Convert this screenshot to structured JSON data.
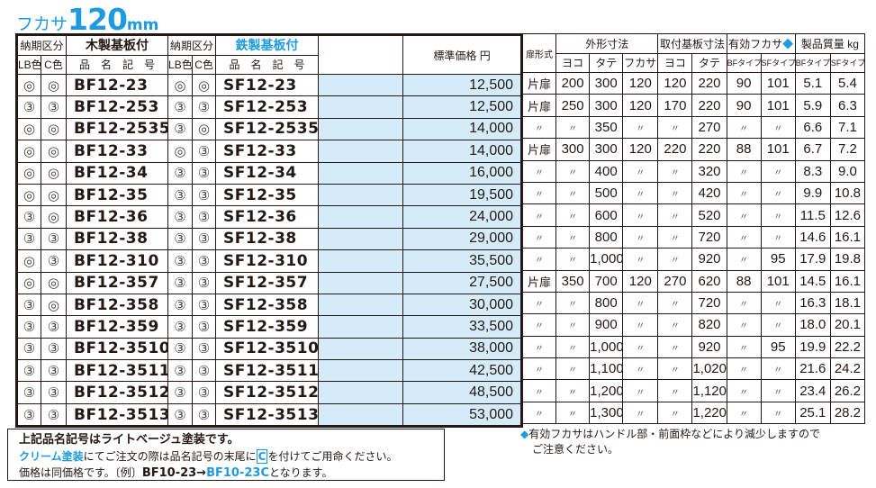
{
  "title": {
    "prefix": "フカサ",
    "value": "120",
    "unit": "mm"
  },
  "left_header": {
    "lead_time": "納期区分",
    "wood": "木製基板付",
    "steel": "鉄製基板付",
    "lb": "LB色",
    "c": "C色",
    "code": "品　名　記　号",
    "price": "標準価格 円"
  },
  "right_header": {
    "door": "扉形式",
    "outer": "外形寸法",
    "mount": "取付基板寸法",
    "depth": "有効フカサ",
    "diamond": "◆",
    "weight": "製品質量 kg",
    "yoko": "ヨコ",
    "tate": "タテ",
    "fukasa": "フカサ",
    "bf": "BFタイプ",
    "sf": "SFタイプ"
  },
  "colors": {
    "accent": "#1e9be0",
    "price_bg": "#d5ebf8"
  },
  "rows": [
    [
      "◎",
      "◎",
      "BF12-23",
      "◎",
      "◎",
      "SF12-23",
      "12,500",
      "片扉",
      "200",
      "300",
      "120",
      "120",
      "220",
      "90",
      "101",
      "5.1",
      "5.4"
    ],
    [
      "③",
      "③",
      "BF12-253",
      "③",
      "③",
      "SF12-253",
      "12,500",
      "片扉",
      "250",
      "300",
      "120",
      "170",
      "220",
      "90",
      "101",
      "5.9",
      "6.3"
    ],
    [
      "◎",
      "◎",
      "BF12-2535",
      "③",
      "◎",
      "SF12-2535",
      "14,000",
      "〃",
      "〃",
      "350",
      "〃",
      "〃",
      "270",
      "〃",
      "〃",
      "6.6",
      "7.1"
    ],
    [
      "◎",
      "◎",
      "BF12-33",
      "◎",
      "③",
      "SF12-33",
      "14,000",
      "片扉",
      "300",
      "300",
      "120",
      "220",
      "220",
      "88",
      "101",
      "6.7",
      "7.2"
    ],
    [
      "◎",
      "◎",
      "BF12-34",
      "③",
      "③",
      "SF12-34",
      "16,000",
      "〃",
      "〃",
      "400",
      "〃",
      "〃",
      "320",
      "〃",
      "〃",
      "8.3",
      "9.0"
    ],
    [
      "◎",
      "◎",
      "BF12-35",
      "③",
      "③",
      "SF12-35",
      "19,500",
      "〃",
      "〃",
      "500",
      "〃",
      "〃",
      "420",
      "〃",
      "〃",
      "9.9",
      "10.8"
    ],
    [
      "③",
      "◎",
      "BF12-36",
      "③",
      "③",
      "SF12-36",
      "24,000",
      "〃",
      "〃",
      "600",
      "〃",
      "〃",
      "520",
      "〃",
      "〃",
      "11.5",
      "12.6"
    ],
    [
      "③",
      "③",
      "BF12-38",
      "③",
      "③",
      "SF12-38",
      "29,000",
      "〃",
      "〃",
      "800",
      "〃",
      "〃",
      "720",
      "〃",
      "〃",
      "14.6",
      "16.1"
    ],
    [
      "◎",
      "③",
      "BF12-310",
      "③",
      "③",
      "SF12-310",
      "35,500",
      "〃",
      "〃",
      "1,000",
      "〃",
      "〃",
      "920",
      "〃",
      "95",
      "17.9",
      "19.8"
    ],
    [
      "◎",
      "◎",
      "BF12-357",
      "③",
      "③",
      "SF12-357",
      "27,500",
      "片扉",
      "350",
      "700",
      "120",
      "270",
      "620",
      "88",
      "101",
      "14.5",
      "16.1"
    ],
    [
      "③",
      "◎",
      "BF12-358",
      "③",
      "③",
      "SF12-358",
      "30,000",
      "〃",
      "〃",
      "800",
      "〃",
      "〃",
      "720",
      "〃",
      "〃",
      "16.3",
      "18.1"
    ],
    [
      "③",
      "③",
      "BF12-359",
      "③",
      "③",
      "SF12-359",
      "33,500",
      "〃",
      "〃",
      "900",
      "〃",
      "〃",
      "820",
      "〃",
      "〃",
      "18.0",
      "20.1"
    ],
    [
      "③",
      "③",
      "BF12-3510",
      "③",
      "③",
      "SF12-3510",
      "38,000",
      "〃",
      "〃",
      "1,000",
      "〃",
      "〃",
      "920",
      "〃",
      "95",
      "19.9",
      "22.2"
    ],
    [
      "③",
      "③",
      "BF12-3511",
      "③",
      "③",
      "SF12-3511",
      "42,500",
      "〃",
      "〃",
      "1,100",
      "〃",
      "〃",
      "1,020",
      "〃",
      "〃",
      "21.6",
      "24.2"
    ],
    [
      "③",
      "③",
      "BF12-3512",
      "③",
      "③",
      "SF12-3512",
      "48,500",
      "〃",
      "〃",
      "1,200",
      "〃",
      "〃",
      "1,120",
      "〃",
      "〃",
      "23.4",
      "26.2"
    ],
    [
      "③",
      "③",
      "BF12-3513",
      "③",
      "③",
      "SF12-3513",
      "53,000",
      "〃",
      "〃",
      "1,300",
      "〃",
      "〃",
      "1,220",
      "〃",
      "〃",
      "25.1",
      "28.2"
    ]
  ],
  "note": {
    "line1": "上記品名記号はライトベージュ塗装です。",
    "cream": "クリーム塗装",
    "line2a": "にてご注文の際は品名記号の末尾に",
    "c": "C",
    "line2b": "を付けてご用命ください。",
    "line3a": "価格は同価格です。〔例〕",
    "ex1": "BF10-23→",
    "ex2": "BF10-23C",
    "line3b": "となります。"
  },
  "right_note": {
    "diamond": "◆",
    "line1": "有効フカサはハンドル部・前面枠などにより減少しますので",
    "line2": "ご注意ください。"
  }
}
